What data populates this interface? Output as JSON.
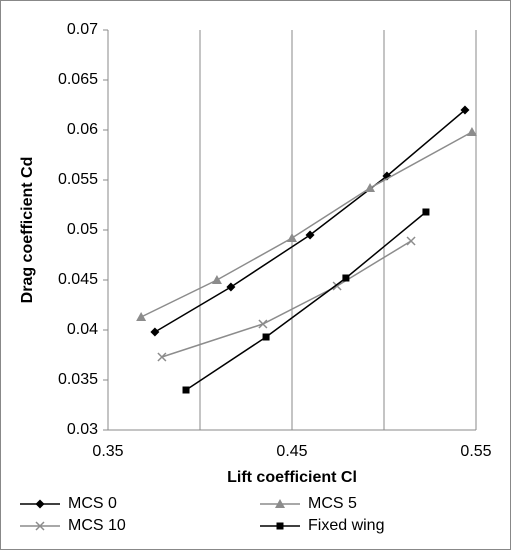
{
  "chart_data": {
    "type": "scatter",
    "xlabel": "Lift coefficient Cl",
    "ylabel": "Drag coefficient Cd",
    "xlim": [
      0.35,
      0.55
    ],
    "xticks": [
      0.35,
      0.45,
      0.55
    ],
    "x_minor_grid": [
      0.4,
      0.5
    ],
    "ylim": [
      0.03,
      0.07
    ],
    "yticks": [
      0.03,
      0.035,
      0.04,
      0.045,
      0.05,
      0.055,
      0.06,
      0.065,
      0.07
    ],
    "grid": "x",
    "legend": "bottom",
    "series": [
      {
        "name": "MCS 0",
        "color": "#000000",
        "marker": "diamond",
        "x": [
          0.3755,
          0.4168,
          0.4598,
          0.5016,
          0.544
        ],
        "values": [
          0.0398,
          0.0443,
          0.0495,
          0.0554,
          0.062
        ]
      },
      {
        "name": "MCS 5",
        "color": "#8c8c8c",
        "marker": "triangle",
        "x": [
          0.368,
          0.4092,
          0.45,
          0.4924,
          0.5478
        ],
        "values": [
          0.0413,
          0.045,
          0.0492,
          0.0542,
          0.0598
        ]
      },
      {
        "name": "MCS 10",
        "color": "#8c8c8c",
        "marker": "x",
        "x": [
          0.3793,
          0.4342,
          0.4745,
          0.5147
        ],
        "values": [
          0.0373,
          0.0406,
          0.0444,
          0.0489
        ]
      },
      {
        "name": "Fixed wing",
        "color": "#000000",
        "marker": "square",
        "x": [
          0.3924,
          0.4359,
          0.4793,
          0.5228
        ],
        "values": [
          0.034,
          0.0393,
          0.0452,
          0.0518
        ]
      }
    ]
  }
}
